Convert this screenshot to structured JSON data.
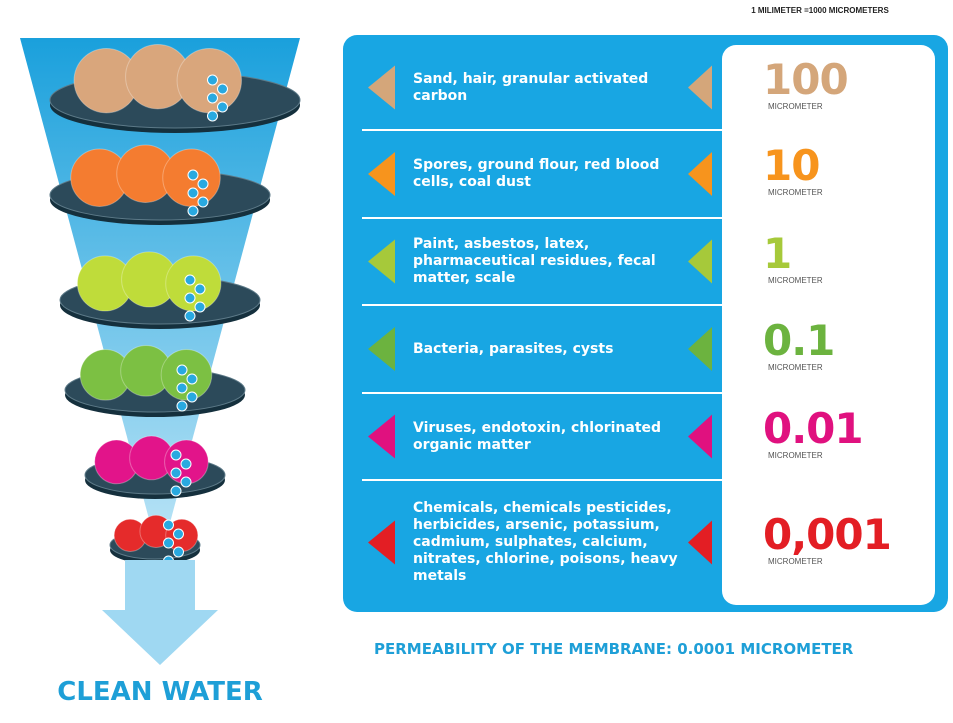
{
  "header": {
    "note": "1 MILIMETER =1000 MICROMETERS"
  },
  "rows": [
    {
      "label": "Sand, hair, granular activated carbon",
      "size": "100",
      "unit": "MICROMETER",
      "color": "#d4a67a"
    },
    {
      "label": "Spores, ground flour, red blood cells, coal dust",
      "size": "10",
      "unit": "MICROMETER",
      "color": "#f7941d"
    },
    {
      "label": "Paint, asbestos, latex, pharmaceutical residues, fecal matter, scale",
      "size": "1",
      "unit": "MICROMETER",
      "color": "#a6c93a"
    },
    {
      "label": "Bacteria, parasites, cysts",
      "size": "0.1",
      "unit": "MICROMETER",
      "color": "#6cb33f"
    },
    {
      "label": "Viruses, endotoxin, chlorinated organic matter",
      "size": "0.01",
      "unit": "MICROMETER",
      "color": "#e0117f"
    },
    {
      "label": "Chemicals, chemicals pesticides, herbicides, arsenic, potassium, cadmium, sulphates, calcium, nitrates, chlorine, poisons, heavy metals",
      "size": "0,001",
      "unit": "MICROMETER",
      "color": "#e31e24"
    }
  ],
  "footer": {
    "permeability": "PERMEABILITY OF THE MEMBRANE: 0.0001 MICROMETER",
    "result": "CLEAN WATER"
  }
}
